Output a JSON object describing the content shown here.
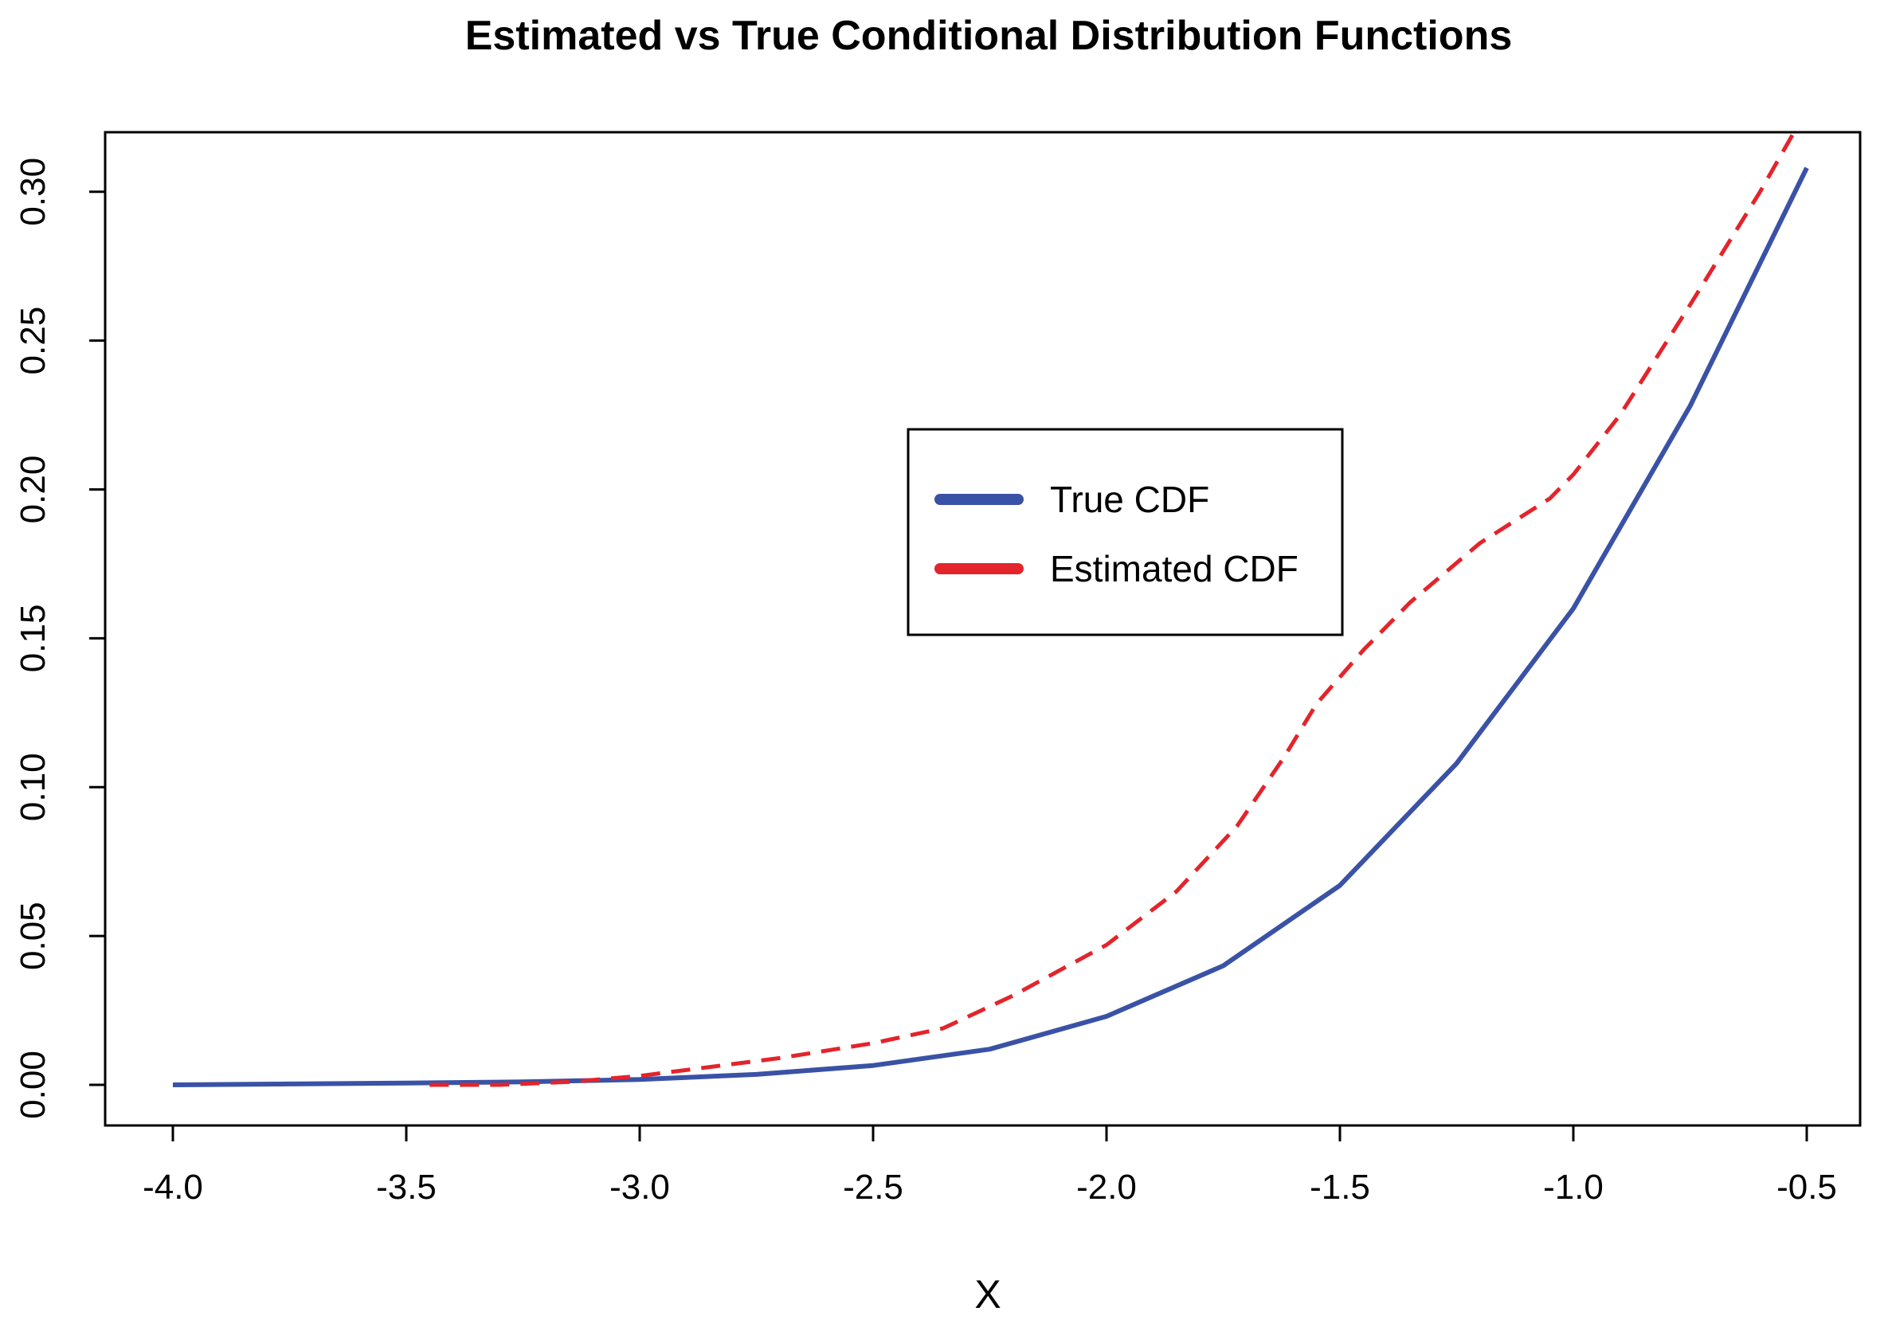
{
  "chart_data": {
    "type": "line",
    "title": "Estimated vs True Conditional Distribution Functions",
    "xlabel": "X",
    "ylabel": "",
    "xlim": [
      -4.0,
      -0.5
    ],
    "ylim": [
      0.0,
      0.32
    ],
    "xticks": [
      -4.0,
      -3.5,
      -3.0,
      -2.5,
      -2.0,
      -1.5,
      -1.0,
      -0.5
    ],
    "xtick_labels": [
      "-4.0",
      "-3.5",
      "-3.0",
      "-2.5",
      "-2.0",
      "-1.5",
      "-1.0",
      "-0.5"
    ],
    "yticks": [
      0.0,
      0.05,
      0.1,
      0.15,
      0.2,
      0.25,
      0.3
    ],
    "ytick_labels": [
      "0.00",
      "0.05",
      "0.10",
      "0.15",
      "0.20",
      "0.25",
      "0.30"
    ],
    "grid": false,
    "legend_position": "center",
    "series": [
      {
        "name": "True CDF",
        "color": "#3a52a6",
        "style": "solid",
        "x": [
          -4.0,
          -3.75,
          -3.5,
          -3.25,
          -3.0,
          -2.75,
          -2.5,
          -2.25,
          -2.0,
          -1.75,
          -1.5,
          -1.25,
          -1.0,
          -0.75,
          -0.5
        ],
        "y": [
          0.0,
          0.0003,
          0.0006,
          0.001,
          0.0018,
          0.0035,
          0.0065,
          0.012,
          0.023,
          0.04,
          0.067,
          0.108,
          0.16,
          0.228,
          0.308
        ]
      },
      {
        "name": "Estimated CDF",
        "color": "#e3242b",
        "style": "dashed",
        "x": [
          -3.45,
          -3.3,
          -3.15,
          -3.0,
          -2.85,
          -2.7,
          -2.5,
          -2.35,
          -2.2,
          -2.0,
          -1.85,
          -1.72,
          -1.62,
          -1.55,
          -1.45,
          -1.35,
          -1.2,
          -1.05,
          -1.0,
          -0.9,
          -0.75,
          -0.6,
          -0.52
        ],
        "y": [
          0.0,
          0.0,
          0.001,
          0.003,
          0.006,
          0.009,
          0.014,
          0.019,
          0.03,
          0.047,
          0.065,
          0.087,
          0.11,
          0.128,
          0.146,
          0.162,
          0.182,
          0.197,
          0.205,
          0.225,
          0.262,
          0.3,
          0.322
        ]
      }
    ]
  }
}
